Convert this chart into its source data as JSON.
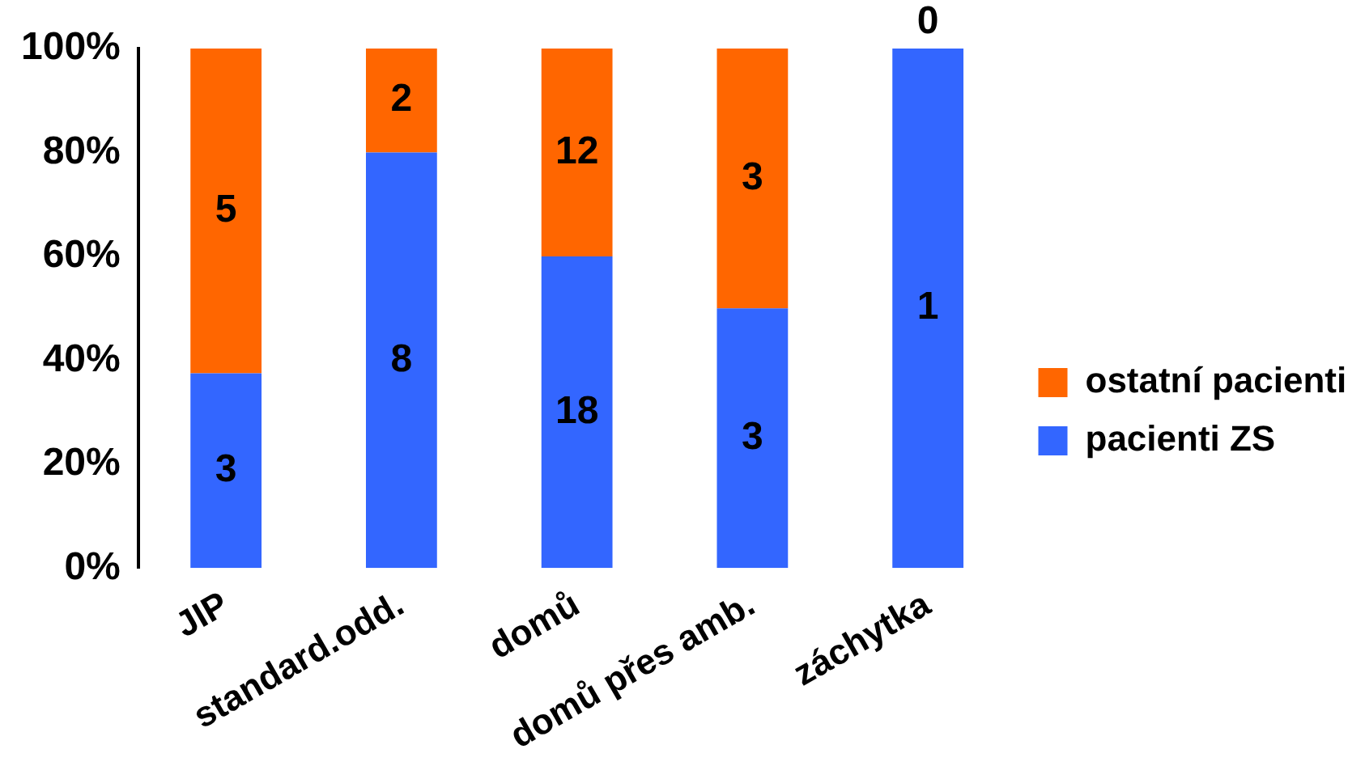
{
  "chart_data": {
    "type": "bar",
    "stacked": true,
    "categories": [
      "JIP",
      "standard.odd.",
      "domů",
      "domů přes amb.",
      "záchytka"
    ],
    "series": [
      {
        "name": "pacienti ZS",
        "color": "#3366ff",
        "values": [
          37.5,
          80,
          60,
          50,
          100
        ]
      },
      {
        "name": "ostatní pacienti",
        "color": "#ff6600",
        "values": [
          62.5,
          20,
          40,
          50,
          0
        ]
      }
    ],
    "ylim": [
      0,
      100
    ],
    "yticks": [
      {
        "value": 0,
        "label": "0%"
      },
      {
        "value": 20,
        "label": "20%"
      },
      {
        "value": 40,
        "label": "40%"
      },
      {
        "value": 60,
        "label": "60%"
      },
      {
        "value": 80,
        "label": "80%"
      },
      {
        "value": 100,
        "label": "100%"
      }
    ],
    "annotations": [
      "3",
      "8",
      "18",
      "3",
      "1",
      "5",
      "2",
      "12",
      "3",
      "0"
    ],
    "grid": false,
    "legend": "right"
  }
}
